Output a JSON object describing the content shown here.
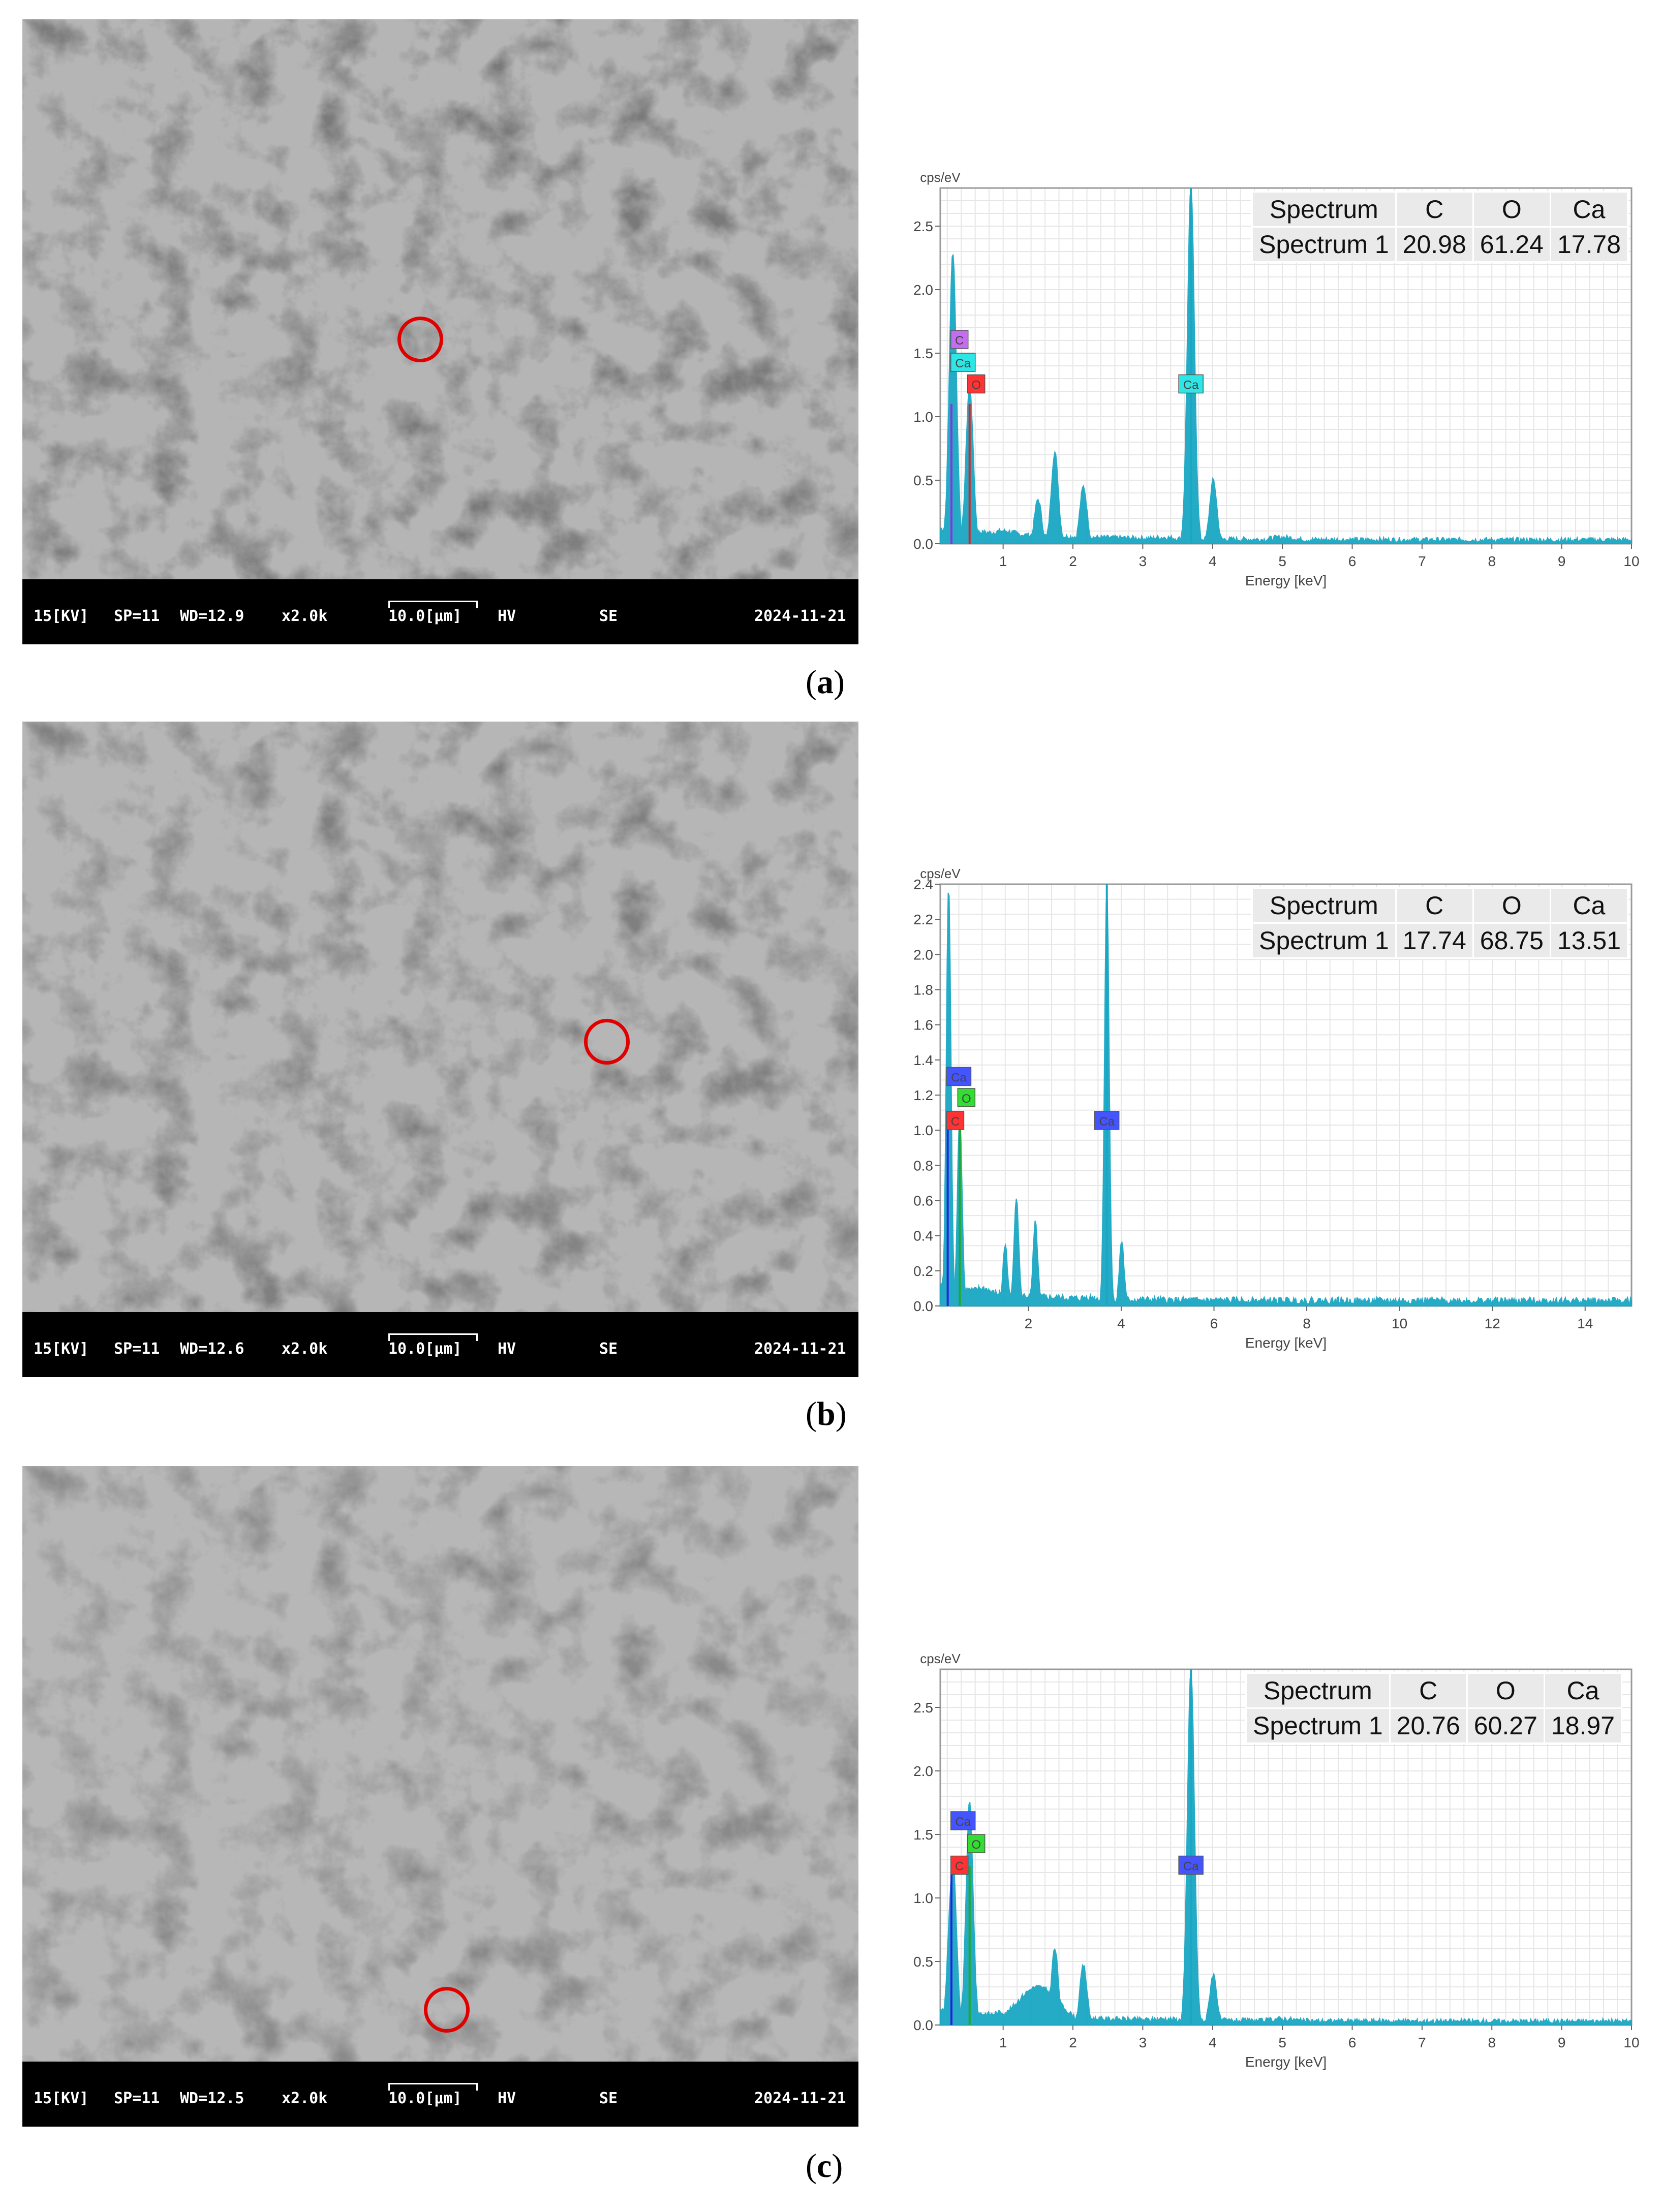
{
  "panels": [
    {
      "caption_label": "a",
      "sem": {
        "kv": "15[KV]",
        "sp": "SP=11",
        "wd": "WD=12.9",
        "mag": "x2.0k",
        "scale": "10.0[μm]",
        "mode1": "HV",
        "mode2": "SE",
        "date": "2024-11-21"
      },
      "table": {
        "header": [
          "Spectrum",
          "C",
          "O",
          "Ca"
        ],
        "row": [
          "Spectrum 1",
          "20.98",
          "61.24",
          "17.78"
        ]
      },
      "element_tags": [
        {
          "label": "C",
          "color": "#c56cf0"
        },
        {
          "label": "Ca",
          "color": "#2ee6e6"
        },
        {
          "label": "O",
          "color": "#ff3333"
        },
        {
          "label": "Ca",
          "color": "#2ee6e6"
        }
      ]
    },
    {
      "caption_label": "b",
      "sem": {
        "kv": "15[KV]",
        "sp": "SP=11",
        "wd": "WD=12.6",
        "mag": "x2.0k",
        "scale": "10.0[μm]",
        "mode1": "HV",
        "mode2": "SE",
        "date": "2024-11-21"
      },
      "table": {
        "header": [
          "Spectrum",
          "C",
          "O",
          "Ca"
        ],
        "row": [
          "Spectrum 1",
          "17.74",
          "68.75",
          "13.51"
        ]
      },
      "element_tags": [
        {
          "label": "Ca",
          "color": "#4455ff"
        },
        {
          "label": "O",
          "color": "#33dd33"
        },
        {
          "label": "C",
          "color": "#ff3333"
        },
        {
          "label": "Ca",
          "color": "#4455ff"
        }
      ]
    },
    {
      "caption_label": "c",
      "sem": {
        "kv": "15[KV]",
        "sp": "SP=11",
        "wd": "WD=12.5",
        "mag": "x2.0k",
        "scale": "10.0[μm]",
        "mode1": "HV",
        "mode2": "SE",
        "date": "2024-11-21"
      },
      "table": {
        "header": [
          "Spectrum",
          "C",
          "O",
          "Ca"
        ],
        "row": [
          "Spectrum 1",
          "20.76",
          "60.27",
          "18.97"
        ]
      },
      "element_tags": [
        {
          "label": "Ca",
          "color": "#4455ff"
        },
        {
          "label": "O",
          "color": "#33dd33"
        },
        {
          "label": "C",
          "color": "#ff3333"
        },
        {
          "label": "Ca",
          "color": "#4455ff"
        }
      ]
    }
  ],
  "chart_data": [
    {
      "type": "line",
      "ylabel": "cps/eV",
      "xlabel": "Energy [keV]",
      "xlim": [
        0.1,
        10
      ],
      "ylim": [
        0,
        2.8
      ],
      "xticks": [
        1,
        2,
        3,
        4,
        5,
        6,
        7,
        8,
        9,
        10
      ],
      "yticks": [
        0.0,
        0.5,
        1.0,
        1.5,
        2.0,
        2.5
      ],
      "tick_labels_y": [
        "0.0",
        "0.5",
        "1.0",
        "1.5",
        "2.0",
        "2.5"
      ],
      "tick_labels_x": [
        "1",
        "2",
        "3",
        "4",
        "5",
        "6",
        "7",
        "8",
        "9",
        "10"
      ],
      "grid": true,
      "series": [
        {
          "color": "#1aa7c4",
          "points": [
            [
              0.26,
              1.1
            ],
            [
              0.28,
              2.3
            ],
            [
              0.38,
              0.1
            ],
            [
              0.52,
              1.25
            ],
            [
              1.0,
              0.1
            ],
            [
              1.5,
              0.35
            ],
            [
              1.74,
              0.72
            ],
            [
              2.15,
              0.45
            ],
            [
              3.3,
              0.05
            ],
            [
              3.69,
              2.8
            ],
            [
              4.01,
              0.5
            ],
            [
              5.0,
              0.05
            ],
            [
              7.0,
              0.02
            ],
            [
              10,
              0.02
            ]
          ]
        }
      ],
      "tags_keV": [
        [
          0.28,
          1.6
        ],
        [
          0.28,
          1.42
        ],
        [
          0.52,
          1.25
        ],
        [
          3.69,
          1.25
        ]
      ],
      "peak_lines": [
        {
          "x": 0.26,
          "y": 1.1,
          "color": "#8833dd"
        },
        {
          "x": 0.52,
          "y": 1.1,
          "color": "#dd2222"
        },
        {
          "x": 3.69,
          "y": 2.8,
          "color": "#1aa7c4"
        }
      ]
    },
    {
      "type": "line",
      "ylabel": "cps/eV",
      "xlabel": "Energy [keV]",
      "xlim": [
        0.1,
        15
      ],
      "ylim": [
        0,
        2.4
      ],
      "xticks": [
        2,
        4,
        6,
        8,
        10,
        12,
        14
      ],
      "yticks": [
        0.0,
        0.2,
        0.4,
        0.6,
        0.8,
        1.0,
        1.2,
        1.4,
        1.6,
        1.8,
        2.0,
        2.2,
        2.4
      ],
      "tick_labels_y": [
        "0.0",
        "0.2",
        "0.4",
        "0.6",
        "0.8",
        "1.0",
        "1.2",
        "1.4",
        "1.6",
        "1.8",
        "2.0",
        "2.2",
        "2.4"
      ],
      "tick_labels_x": [
        "2",
        "4",
        "6",
        "8",
        "10",
        "12",
        "14"
      ],
      "grid": true,
      "series": [
        {
          "color": "#1aa7c4",
          "points": [
            [
              0.26,
              1.1
            ],
            [
              0.28,
              2.4
            ],
            [
              0.38,
              0.1
            ],
            [
              0.52,
              1.1
            ],
            [
              1.0,
              0.1
            ],
            [
              1.5,
              0.35
            ],
            [
              1.74,
              0.63
            ],
            [
              2.15,
              0.47
            ],
            [
              3.3,
              0.05
            ],
            [
              3.69,
              2.4
            ],
            [
              4.01,
              0.37
            ],
            [
              6.0,
              0.03
            ],
            [
              10,
              0.02
            ],
            [
              15,
              0.01
            ]
          ]
        }
      ],
      "tags_keV": [
        [
          0.28,
          1.3
        ],
        [
          0.52,
          1.18
        ],
        [
          0.28,
          1.05
        ],
        [
          3.69,
          1.05
        ]
      ],
      "peak_lines": [
        {
          "x": 0.26,
          "y": 1.1,
          "color": "#2222dd"
        },
        {
          "x": 0.52,
          "y": 1.1,
          "color": "#22aa22"
        },
        {
          "x": 3.69,
          "y": 2.4,
          "color": "#1aa7c4"
        }
      ]
    },
    {
      "type": "line",
      "ylabel": "cps/eV",
      "xlabel": "Energy [keV]",
      "xlim": [
        0.1,
        10
      ],
      "ylim": [
        0,
        2.8
      ],
      "xticks": [
        1,
        2,
        3,
        4,
        5,
        6,
        7,
        8,
        9,
        10
      ],
      "yticks": [
        0.0,
        0.5,
        1.0,
        1.5,
        2.0,
        2.5
      ],
      "tick_labels_y": [
        "0.0",
        "0.5",
        "1.0",
        "1.5",
        "2.0",
        "2.5"
      ],
      "tick_labels_x": [
        "1",
        "2",
        "3",
        "4",
        "5",
        "6",
        "7",
        "8",
        "9",
        "10"
      ],
      "grid": true,
      "series": [
        {
          "color": "#1aa7c4",
          "points": [
            [
              0.26,
              1.1
            ],
            [
              0.28,
              1.3
            ],
            [
              0.38,
              0.1
            ],
            [
              0.52,
              1.75
            ],
            [
              1.0,
              0.1
            ],
            [
              1.5,
              0.3
            ],
            [
              1.74,
              0.6
            ],
            [
              2.15,
              0.47
            ],
            [
              3.3,
              0.05
            ],
            [
              3.69,
              2.8
            ],
            [
              4.01,
              0.4
            ],
            [
              5.0,
              0.05
            ],
            [
              7.0,
              0.02
            ],
            [
              10,
              0.02
            ]
          ]
        }
      ],
      "tags_keV": [
        [
          0.28,
          1.6
        ],
        [
          0.52,
          1.42
        ],
        [
          0.28,
          1.25
        ],
        [
          3.69,
          1.25
        ]
      ],
      "peak_lines": [
        {
          "x": 0.26,
          "y": 1.25,
          "color": "#2222dd"
        },
        {
          "x": 0.52,
          "y": 1.25,
          "color": "#22aa22"
        },
        {
          "x": 3.69,
          "y": 2.8,
          "color": "#1aa7c4"
        }
      ]
    }
  ]
}
